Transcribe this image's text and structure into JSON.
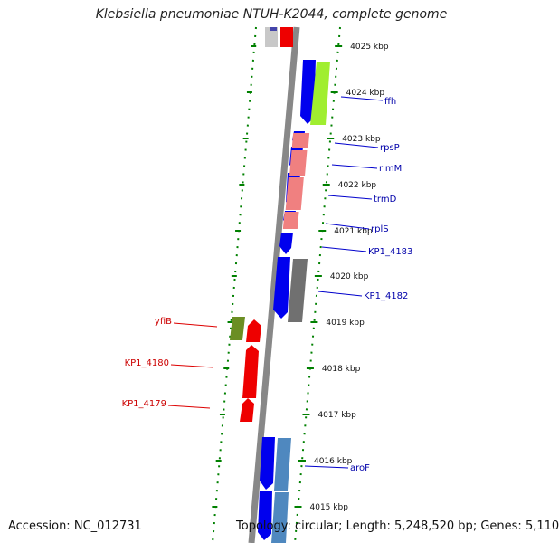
{
  "title": "Klebsiella pneumoniae NTUH-K2044, complete genome",
  "accession": {
    "label": "Accession:",
    "value": "NC_012731"
  },
  "topology": {
    "topology_label": "Topology:",
    "topology_value": "circular;",
    "length_label": "Length:",
    "length_value": "5,248,520 bp;",
    "genes_label": "Genes:",
    "genes_value": "5,110"
  },
  "colors": {
    "backbone": "#888888",
    "plus_strand": "#0000ee",
    "minus_strand": "#ee0000",
    "ticks": "#008000",
    "label_plus": "#0000aa",
    "label_minus": "#cc0000"
  },
  "ticks": [
    {
      "label": "4025 kbp"
    },
    {
      "label": "4024 kbp"
    },
    {
      "label": "4023 kbp"
    },
    {
      "label": "4022 kbp"
    },
    {
      "label": "4021 kbp"
    },
    {
      "label": "4020 kbp"
    },
    {
      "label": "4019 kbp"
    },
    {
      "label": "4018 kbp"
    },
    {
      "label": "4017 kbp"
    },
    {
      "label": "4016 kbp"
    },
    {
      "label": "4015 kbp"
    }
  ],
  "gene_labels": {
    "ffh": "ffh",
    "rpsP": "rpsP",
    "rimM": "rimM",
    "trmD": "trmD",
    "rplS": "rplS",
    "kp1_4183": "KP1_4183",
    "kp1_4182": "KP1_4182",
    "aroF": "aroF",
    "yfiB": "yfiB",
    "kp1_4180": "KP1_4180",
    "kp1_4179": "KP1_4179"
  }
}
